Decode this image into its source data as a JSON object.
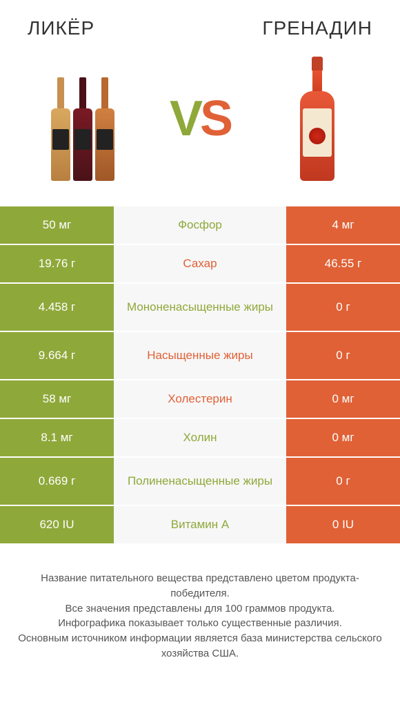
{
  "header": {
    "left_title": "ЛИКЁР",
    "right_title": "ГРЕНАДИН"
  },
  "vs": {
    "v": "V",
    "s": "S"
  },
  "colors": {
    "green": "#8fa83a",
    "orange": "#e06136",
    "mid_bg": "#f7f7f7",
    "text": "#333333"
  },
  "rows": [
    {
      "nutrient": "Фосфор",
      "left": "50 мг",
      "right": "4 мг",
      "winner": "left",
      "tall": false
    },
    {
      "nutrient": "Сахар",
      "left": "19.76 г",
      "right": "46.55 г",
      "winner": "right",
      "tall": false
    },
    {
      "nutrient": "Мононенасыщенные жиры",
      "left": "4.458 г",
      "right": "0 г",
      "winner": "left",
      "tall": true
    },
    {
      "nutrient": "Насыщенные жиры",
      "left": "9.664 г",
      "right": "0 г",
      "winner": "right",
      "tall": true
    },
    {
      "nutrient": "Холестерин",
      "left": "58 мг",
      "right": "0 мг",
      "winner": "right",
      "tall": false
    },
    {
      "nutrient": "Холин",
      "left": "8.1 мг",
      "right": "0 мг",
      "winner": "left",
      "tall": false
    },
    {
      "nutrient": "Полиненасыщенные жиры",
      "left": "0.669 г",
      "right": "0 г",
      "winner": "left",
      "tall": true
    },
    {
      "nutrient": "Витамин A",
      "left": "620 IU",
      "right": "0 IU",
      "winner": "left",
      "tall": false
    }
  ],
  "footer": {
    "line1": "Название питательного вещества представлено цветом продукта-победителя.",
    "line2": "Все значения представлены для 100 граммов продукта.",
    "line3": "Инфографика показывает только существенные различия.",
    "line4": "Основным источником информации является база министерства сельского хозяйства США."
  }
}
